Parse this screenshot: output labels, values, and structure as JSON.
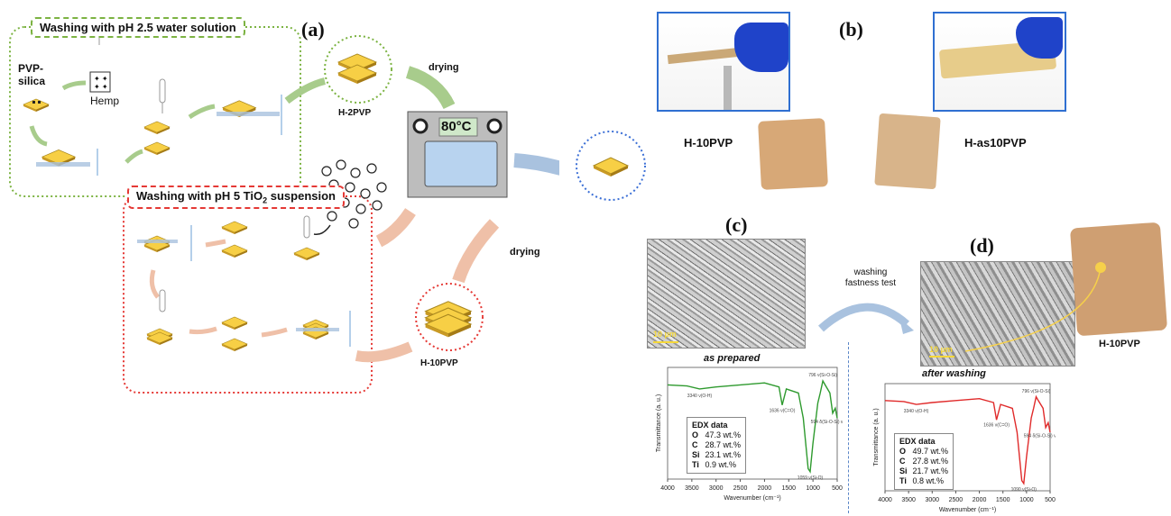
{
  "panel_a": {
    "label": "(a)",
    "box1_title": "Washing with pH 2.5 water solution",
    "box2_title_main": "Washing with pH 5 TiO",
    "box2_title_sub": "2",
    "box2_title_end": " suspension",
    "pvp_silica": "PVP-silica",
    "hemp": "Hemp",
    "h2pvp": "H-2PVP",
    "drying_top": "drying",
    "oven_temp": "80°C",
    "drying_bottom": "drying",
    "h10pvp": "H-10PVP"
  },
  "panel_b": {
    "label": "(b)",
    "h10pvp": "H-10PVP",
    "has10pvp": "H-as10PVP"
  },
  "panel_c": {
    "label": "(c)",
    "scale": "10 µm",
    "caption": "as prepared",
    "y_label": "Transmittance (a. u.)",
    "x_label": "Wavenumber (cm⁻¹)",
    "x_ticks": [
      "4000",
      "3500",
      "3000",
      "2500",
      "2000",
      "1500",
      "1000",
      "500"
    ],
    "annotations": [
      "3340 ν(O-H)",
      "1636 ν(C=O)",
      "796 ν(Si-O-Si)",
      "1059 ν(Si-O)",
      "594 δ(Si-O-Si) ν(Ti-O)"
    ],
    "edx_title": "EDX data",
    "edx": [
      {
        "el": "O",
        "val": "47.3 wt.%"
      },
      {
        "el": "C",
        "val": "28.7 wt.%"
      },
      {
        "el": "Si",
        "val": "23.1 wt.%"
      },
      {
        "el": "Ti",
        "val": "0.9 wt.%"
      }
    ],
    "line_color": "#2e9a2e"
  },
  "middle": {
    "washing": "washing",
    "fastness": "fastness test"
  },
  "panel_d": {
    "label": "(d)",
    "scale": "10 µm",
    "h10pvp": "H-10PVP",
    "caption": "after washing",
    "y_label": "Transmittance (a. u.)",
    "x_label": "Wavenumber (cm⁻¹)",
    "x_ticks": [
      "4000",
      "3500",
      "3000",
      "2500",
      "2000",
      "1500",
      "1000",
      "500"
    ],
    "annotations": [
      "3340 ν(O-H)",
      "1636 ν(C=O)",
      "796 ν(Si-O-Si)",
      "1090 ν(Si-O)",
      "594 δ(Si-O-Si) ν(Ti-O)"
    ],
    "edx_title": "EDX data",
    "edx": [
      {
        "el": "O",
        "val": "49.7 wt.%"
      },
      {
        "el": "C",
        "val": "27.8 wt.%"
      },
      {
        "el": "Si",
        "val": "21.7 wt.%"
      },
      {
        "el": "Ti",
        "val": "0.8 wt.%"
      }
    ],
    "line_color": "#e02a2a"
  },
  "colors": {
    "green_dash": "#7cb342",
    "red_dash": "#e53935",
    "blue_dash": "#3b6fd6",
    "yellow": "#f7cf45",
    "arrow_green": "#a8cc8c",
    "arrow_peach": "#efc0a8",
    "arrow_blue": "#a9c2df"
  }
}
